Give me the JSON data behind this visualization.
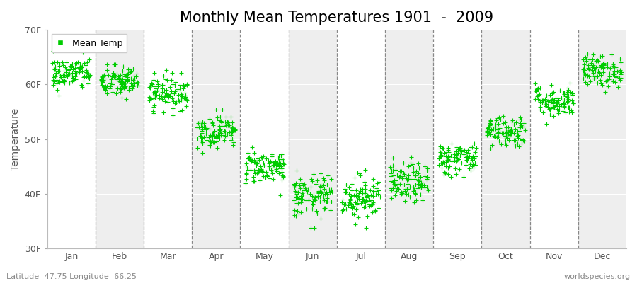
{
  "title": "Monthly Mean Temperatures 1901  -  2009",
  "ylabel": "Temperature",
  "ylim": [
    30,
    70
  ],
  "yticks": [
    30,
    40,
    50,
    60,
    70
  ],
  "ytick_labels": [
    "30F",
    "40F",
    "50F",
    "60F",
    "70F"
  ],
  "months": [
    "Jan",
    "Feb",
    "Mar",
    "Apr",
    "May",
    "Jun",
    "Jul",
    "Aug",
    "Sep",
    "Oct",
    "Nov",
    "Dec"
  ],
  "n_years": 109,
  "monthly_means_F": [
    62.0,
    60.5,
    58.5,
    51.5,
    45.0,
    39.5,
    39.5,
    42.0,
    46.5,
    51.5,
    57.0,
    62.5
  ],
  "monthly_std_F": [
    1.5,
    1.5,
    1.5,
    1.5,
    1.5,
    2.0,
    2.0,
    1.8,
    1.5,
    1.5,
    1.5,
    1.5
  ],
  "point_color": "#00cc00",
  "marker": "+",
  "marker_size": 4,
  "legend_label": "Mean Temp",
  "bg_color_light": "#ffffff",
  "bg_color_dark": "#eeeeee",
  "title_fontsize": 15,
  "label_fontsize": 10,
  "tick_fontsize": 9,
  "footer_left": "Latitude -47.75 Longitude -66.25",
  "footer_right": "worldspecies.org"
}
